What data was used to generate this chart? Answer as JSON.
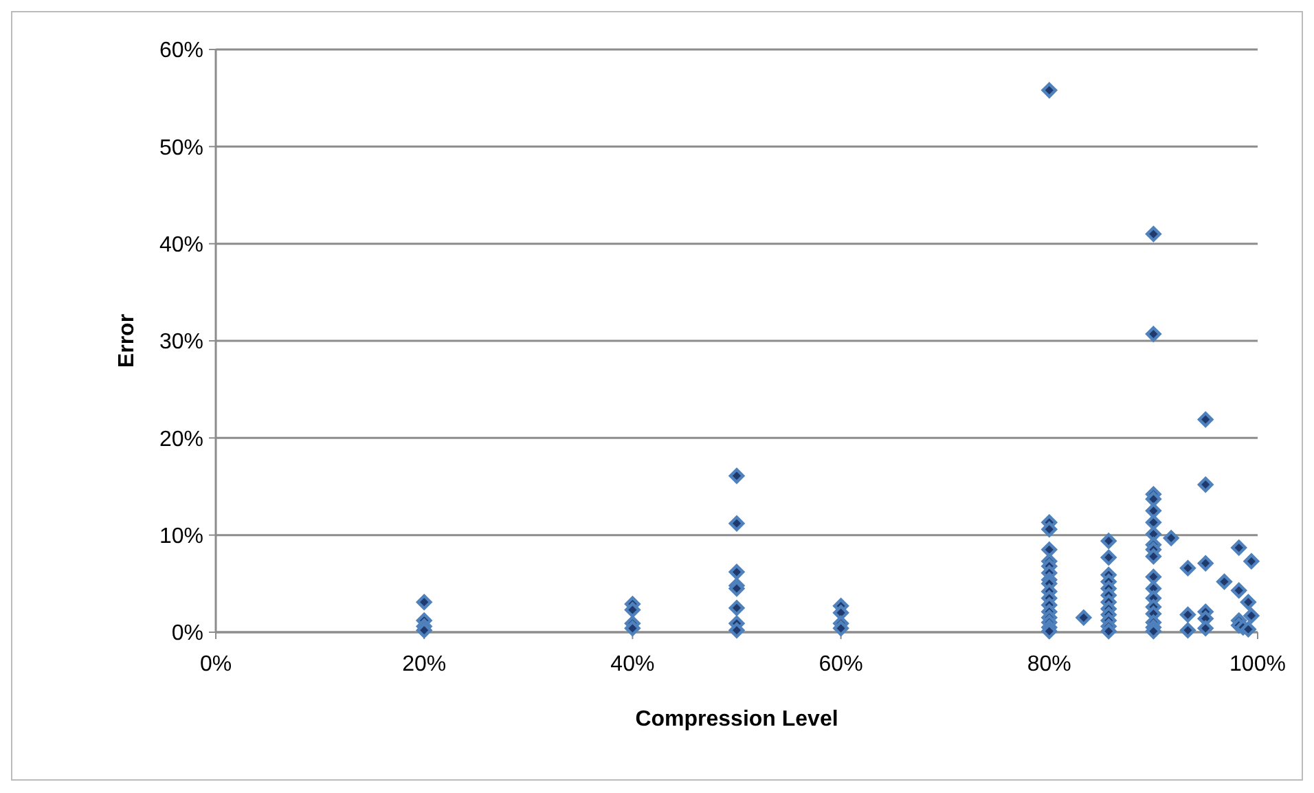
{
  "chart_data": {
    "type": "scatter",
    "xlabel": "Compression Level",
    "ylabel": "Error",
    "xlim": [
      0,
      100
    ],
    "ylim": [
      0,
      60
    ],
    "xticks": [
      {
        "value": 0,
        "label": "0%"
      },
      {
        "value": 20,
        "label": "20%"
      },
      {
        "value": 40,
        "label": "40%"
      },
      {
        "value": 60,
        "label": "60%"
      },
      {
        "value": 80,
        "label": "80%"
      },
      {
        "value": 100,
        "label": "100%"
      }
    ],
    "yticks": [
      {
        "value": 0,
        "label": "0%"
      },
      {
        "value": 10,
        "label": "10%"
      },
      {
        "value": 20,
        "label": "20%"
      },
      {
        "value": 30,
        "label": "30%"
      },
      {
        "value": 40,
        "label": "40%"
      },
      {
        "value": 50,
        "label": "50%"
      },
      {
        "value": 60,
        "label": "60%"
      }
    ],
    "grid": "y",
    "marker": "diamond",
    "series": [
      {
        "color": "#4f81bd",
        "x": [
          20,
          20,
          20,
          20,
          40,
          40,
          40,
          40,
          50,
          50,
          50,
          50,
          50,
          50,
          50,
          50,
          60,
          60,
          60,
          60,
          80,
          80,
          80,
          80,
          80,
          80,
          80,
          80,
          80,
          80,
          80,
          80,
          80,
          80,
          80,
          80,
          80,
          83.3,
          85.7,
          85.7,
          85.7,
          85.7,
          85.7,
          85.7,
          85.7,
          85.7,
          85.7,
          85.7,
          85.7,
          85.7,
          90,
          90,
          90,
          90,
          90,
          90,
          90,
          90,
          90,
          90,
          90,
          90,
          90,
          90,
          90,
          90,
          90,
          90,
          91.7,
          93.3,
          93.3,
          93.3,
          95,
          95,
          95,
          95,
          95,
          95,
          96.8,
          98.2,
          98.2,
          98.2,
          98.2,
          98.6,
          99.1,
          99.1,
          99.4,
          99.4
        ],
        "values": [
          3.1,
          1.2,
          0.6,
          0.2,
          2.9,
          2.3,
          0.9,
          0.4,
          16.1,
          11.2,
          6.2,
          4.8,
          4.5,
          2.5,
          0.9,
          0.2,
          2.7,
          2.0,
          0.9,
          0.4,
          55.8,
          11.3,
          10.6,
          8.5,
          7.3,
          6.8,
          6.1,
          5.4,
          5.0,
          4.2,
          3.5,
          2.8,
          2.1,
          1.5,
          1.0,
          0.5,
          0.1,
          1.5,
          9.4,
          7.7,
          5.9,
          5.2,
          4.5,
          3.8,
          3.1,
          2.4,
          1.8,
          1.2,
          0.6,
          0.1,
          41.0,
          30.7,
          14.2,
          13.7,
          12.5,
          11.3,
          10.1,
          9.0,
          8.5,
          7.8,
          5.7,
          4.5,
          3.5,
          2.6,
          1.9,
          1.0,
          0.5,
          0.1,
          9.7,
          6.6,
          1.8,
          0.2,
          21.9,
          15.2,
          7.1,
          2.1,
          1.4,
          0.4,
          5.2,
          8.7,
          4.3,
          1.2,
          0.7,
          0.5,
          3.1,
          0.3,
          7.3,
          1.7
        ]
      }
    ]
  }
}
